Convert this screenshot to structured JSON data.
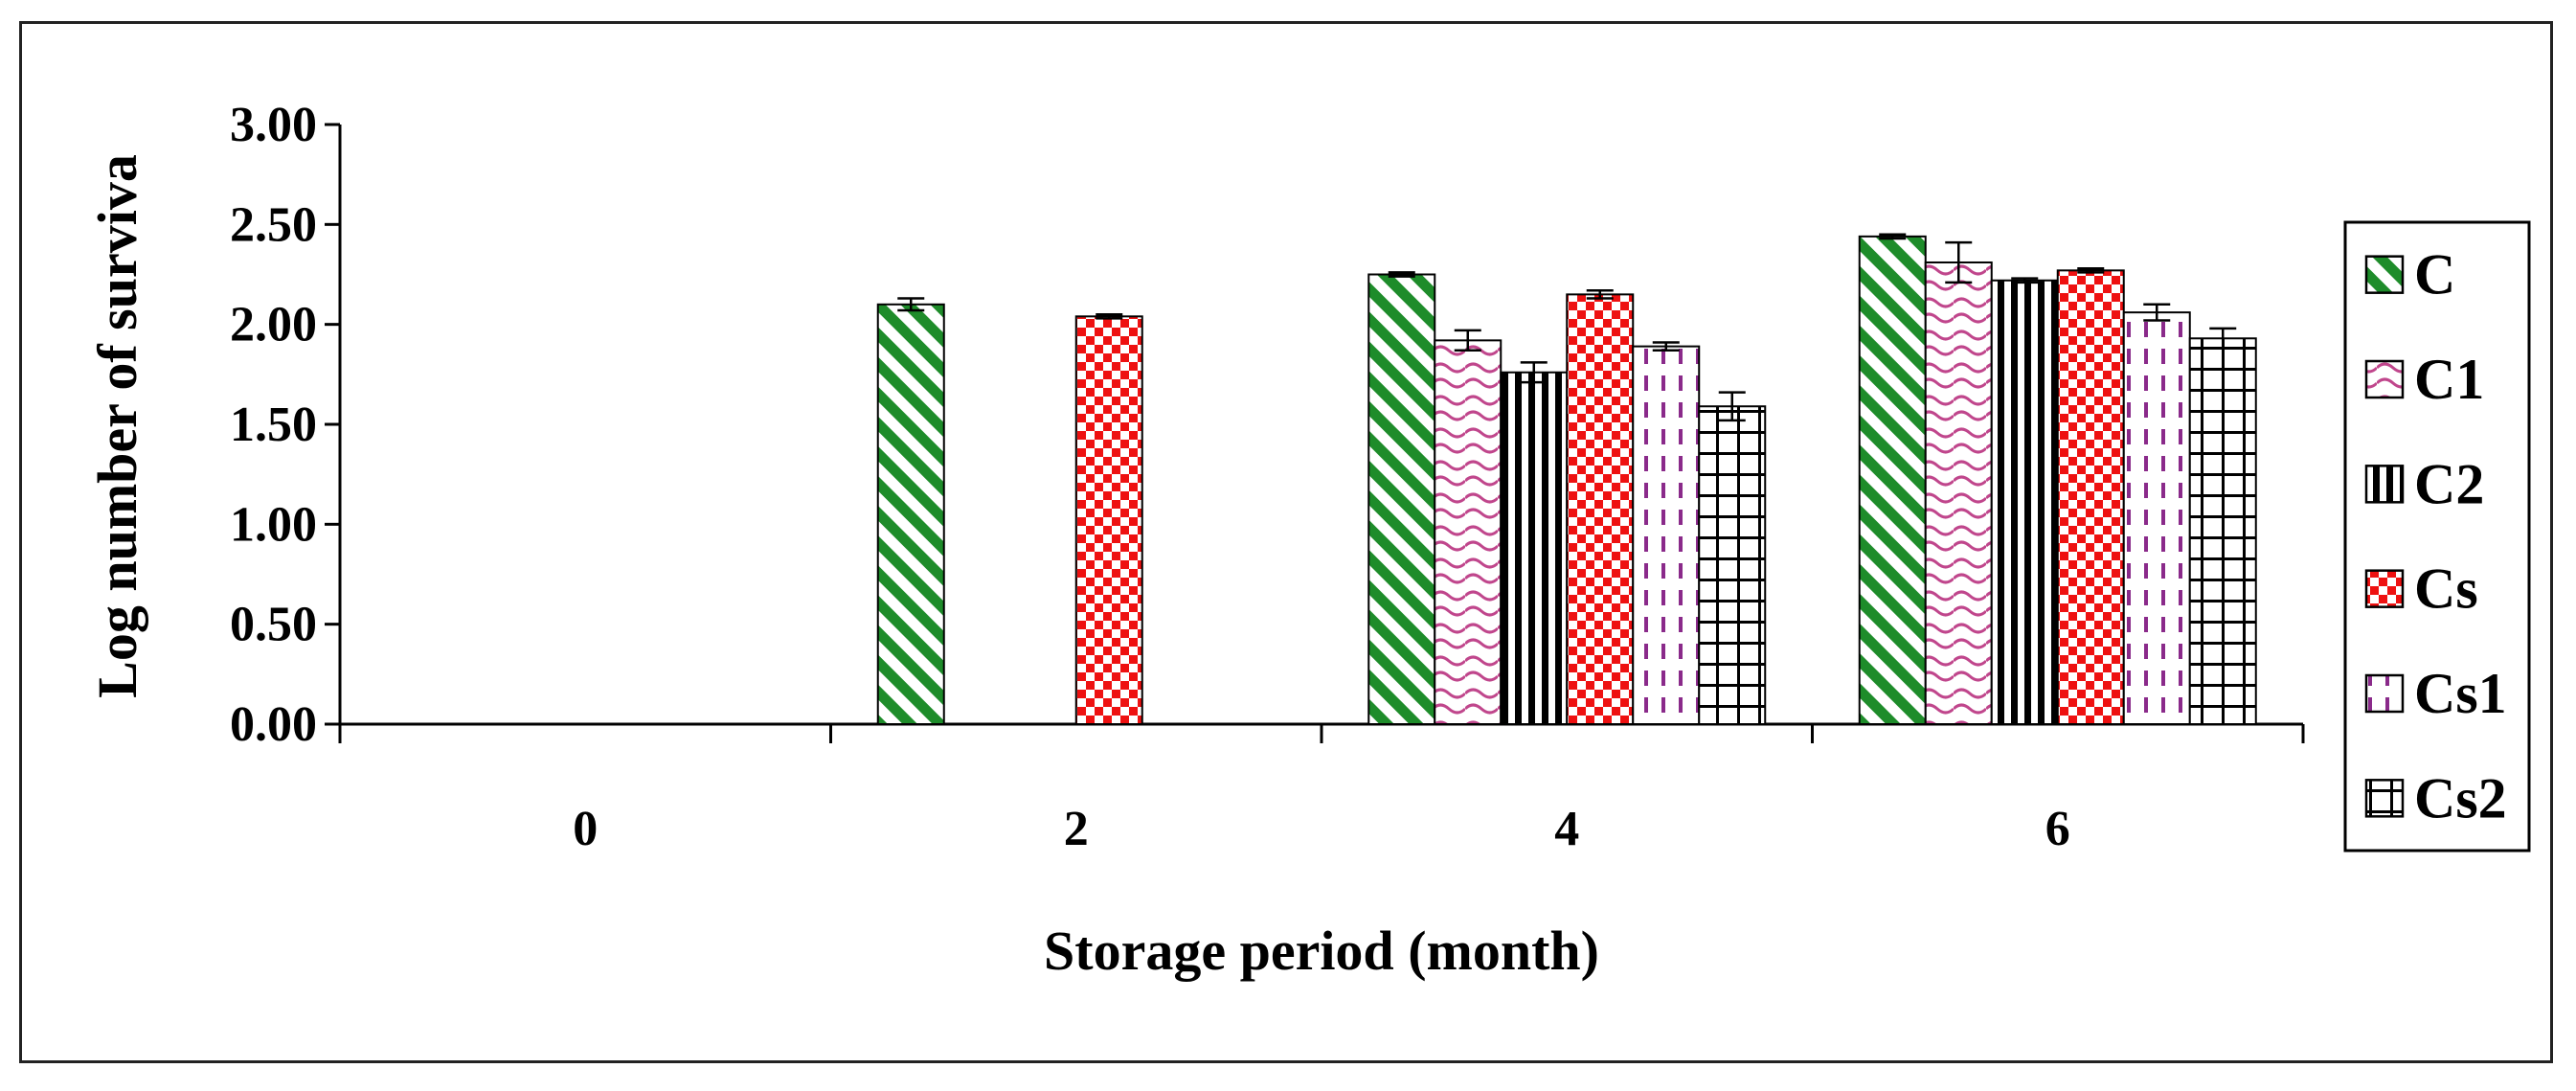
{
  "chart_data": {
    "type": "bar",
    "title": "",
    "xlabel": "Storage period (month)",
    "ylabel": "Log number of surviva",
    "ylim": [
      0,
      3.0
    ],
    "yticks": [
      "0.00",
      "0.50",
      "1.00",
      "1.50",
      "2.00",
      "2.50",
      "3.00"
    ],
    "categories": [
      "0",
      "2",
      "4",
      "6"
    ],
    "legend_position": "right",
    "grid": false,
    "series": [
      {
        "name": "C",
        "pattern": "diagonal-stripes",
        "color": "#1e8c2a",
        "values": [
          0,
          2.1,
          2.25,
          2.44
        ],
        "errors": [
          0,
          0.03,
          0.01,
          0.01
        ]
      },
      {
        "name": "C1",
        "pattern": "wave",
        "color": "#c0468c",
        "values": [
          0,
          0,
          1.92,
          2.31
        ],
        "errors": [
          0,
          0,
          0.05,
          0.1
        ]
      },
      {
        "name": "C2",
        "pattern": "vertical-stripes",
        "color": "#000000",
        "values": [
          0,
          0,
          1.76,
          2.22
        ],
        "errors": [
          0,
          0,
          0.05,
          0.01
        ]
      },
      {
        "name": "Cs",
        "pattern": "checker",
        "color": "#ee1111",
        "values": [
          0,
          2.04,
          2.15,
          2.27
        ],
        "errors": [
          0,
          0.01,
          0.02,
          0.01
        ]
      },
      {
        "name": "Cs1",
        "pattern": "dashed-vertical",
        "color": "#8a2a8a",
        "values": [
          0,
          0,
          1.89,
          2.06
        ],
        "errors": [
          0,
          0,
          0.02,
          0.04
        ]
      },
      {
        "name": "Cs2",
        "pattern": "grid",
        "color": "#000000",
        "values": [
          0,
          0,
          1.59,
          1.93
        ],
        "errors": [
          0,
          0,
          0.07,
          0.05
        ]
      }
    ]
  }
}
